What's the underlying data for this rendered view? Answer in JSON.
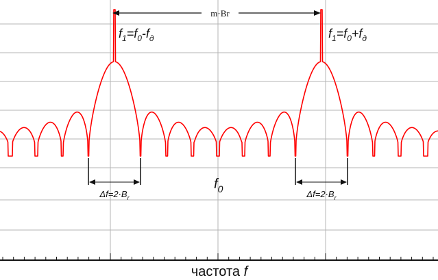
{
  "colors": {
    "spectrum": "#ff0000",
    "grid": "#b4b4b4",
    "axis": "#111111",
    "annotation": "#111111"
  },
  "labels": {
    "bandwidth": "m·Br",
    "left_carrier": {
      "pre": "f",
      "sub1": "1",
      "mid": "=f",
      "sub2": "0",
      "op": "-f",
      "sub3": "д"
    },
    "right_carrier": {
      "pre": "f",
      "sub1": "1",
      "mid": "=f",
      "sub2": "0",
      "op": "+f",
      "sub3": "д"
    },
    "center": {
      "pre": "f",
      "sub": "0"
    },
    "left_width": {
      "pre": "Δf=2·B",
      "sub": "r"
    },
    "right_width": {
      "pre": "Δf=2·B",
      "sub": "r"
    },
    "x_axis": {
      "word": "частота ",
      "var": "f"
    }
  },
  "chart_data": {
    "type": "line",
    "title": "",
    "xlabel": "частота f",
    "ylabel": "",
    "grid": true,
    "series": [
      {
        "description": "spectrum envelope with two carrier spikes",
        "carriers": [
          "f0-fд",
          "f0+fд"
        ],
        "center": "f0",
        "main_lobe_width": "2·Br",
        "carrier_spacing": "m·Br"
      }
    ]
  }
}
